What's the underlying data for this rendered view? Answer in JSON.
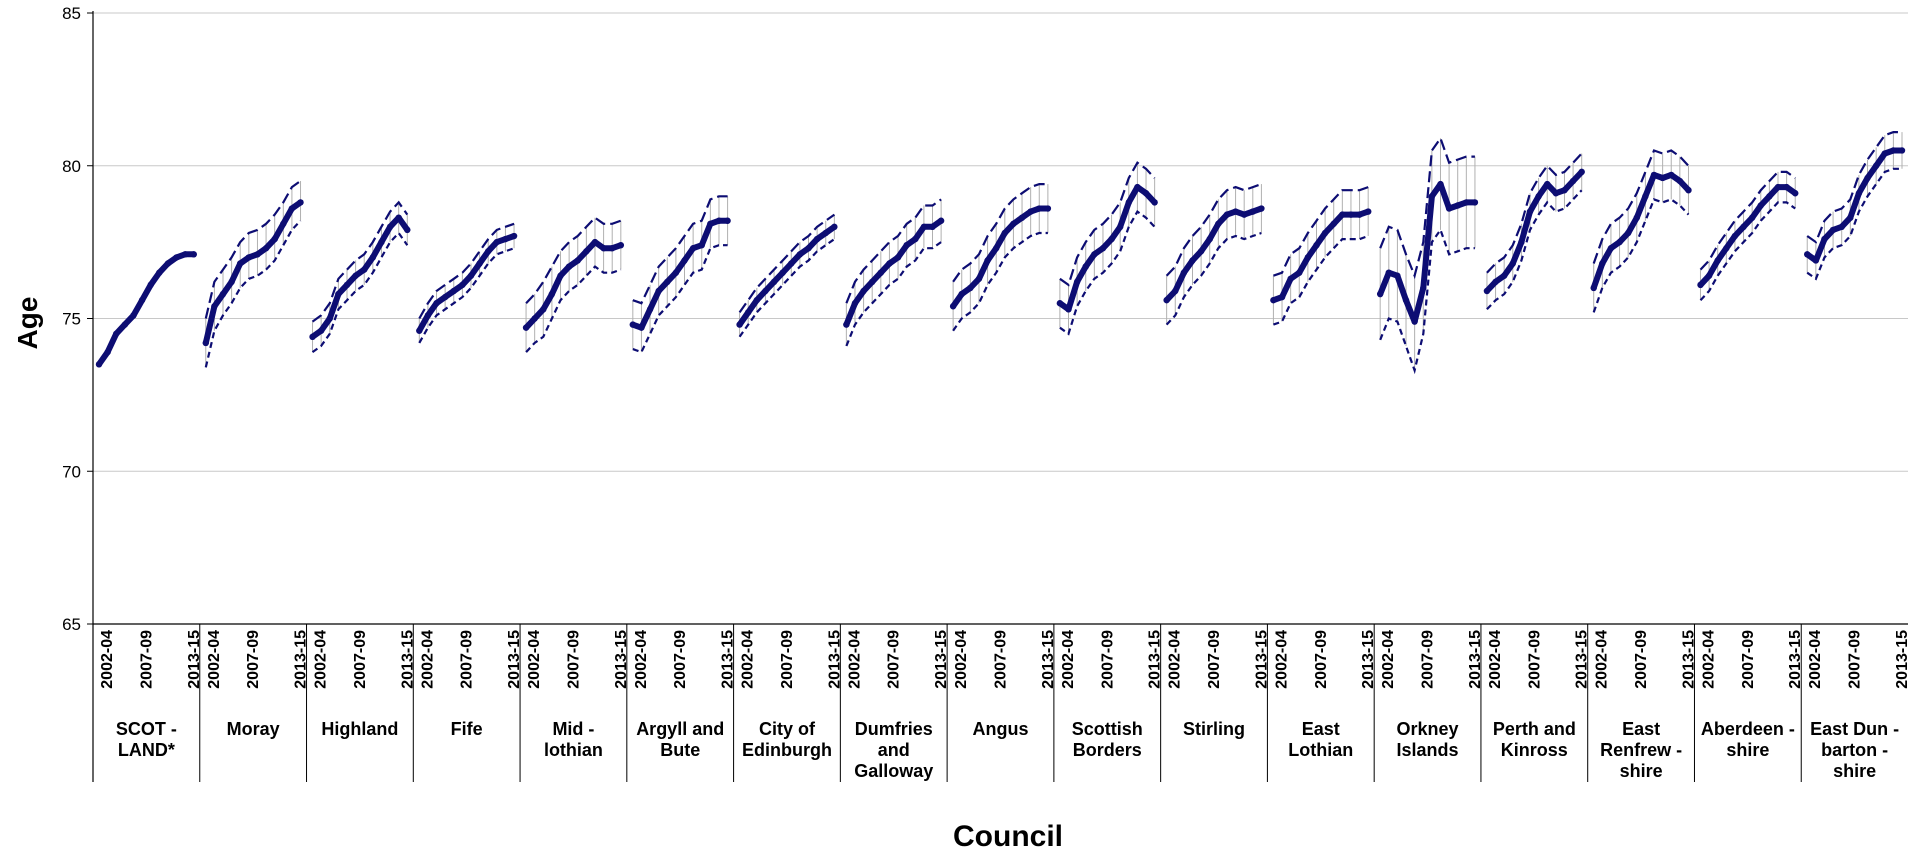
{
  "chart_data": {
    "type": "line",
    "ylabel": "Age",
    "xlabel": "Council",
    "ylim": [
      65,
      85
    ],
    "yticks": [
      65,
      70,
      75,
      80,
      85
    ],
    "grid": true,
    "period_ticks": [
      "2002-04",
      "2007-09",
      "2013-15"
    ],
    "periods": [
      "2002-04",
      "2003-05",
      "2004-06",
      "2005-07",
      "2006-08",
      "2007-09",
      "2008-10",
      "2009-11",
      "2010-12",
      "2011-13",
      "2012-14",
      "2013-15"
    ],
    "series_styles": {
      "estimate": "#0d0d73",
      "ci_bounds": "#0d0d73"
    },
    "groups": [
      {
        "council": [
          "SCOT -",
          "LAND*"
        ],
        "values": [
          73.5,
          73.9,
          74.5,
          74.8,
          75.1,
          75.6,
          76.1,
          76.5,
          76.8,
          77.0,
          77.1,
          77.1
        ],
        "lower": null,
        "upper": null
      },
      {
        "council": [
          "Moray"
        ],
        "values": [
          74.2,
          75.4,
          75.8,
          76.2,
          76.8,
          77.0,
          77.1,
          77.3,
          77.6,
          78.1,
          78.6,
          78.8
        ],
        "lower": [
          73.4,
          74.6,
          75.1,
          75.5,
          76.0,
          76.3,
          76.4,
          76.6,
          76.9,
          77.4,
          77.9,
          78.2
        ],
        "upper": [
          75.0,
          76.2,
          76.6,
          77.0,
          77.5,
          77.8,
          77.9,
          78.1,
          78.4,
          78.8,
          79.3,
          79.5
        ]
      },
      {
        "council": [
          "Highland"
        ],
        "values": [
          74.4,
          74.6,
          75.0,
          75.8,
          76.1,
          76.4,
          76.6,
          77.0,
          77.5,
          78.0,
          78.3,
          77.9
        ],
        "lower": [
          73.9,
          74.1,
          74.5,
          75.3,
          75.6,
          75.9,
          76.1,
          76.5,
          77.0,
          77.5,
          77.8,
          77.4
        ],
        "upper": [
          74.9,
          75.1,
          75.5,
          76.3,
          76.6,
          76.9,
          77.1,
          77.5,
          78.0,
          78.5,
          78.8,
          78.4
        ]
      },
      {
        "council": [
          "Fife"
        ],
        "values": [
          74.6,
          75.1,
          75.5,
          75.7,
          75.9,
          76.1,
          76.4,
          76.8,
          77.2,
          77.5,
          77.6,
          77.7
        ],
        "lower": [
          74.2,
          74.7,
          75.1,
          75.3,
          75.5,
          75.7,
          76.0,
          76.4,
          76.8,
          77.1,
          77.2,
          77.3
        ],
        "upper": [
          75.0,
          75.5,
          75.9,
          76.1,
          76.3,
          76.5,
          76.8,
          77.2,
          77.6,
          77.9,
          78.0,
          78.1
        ]
      },
      {
        "council": [
          "Mid -",
          "lothian"
        ],
        "values": [
          74.7,
          75.0,
          75.3,
          75.8,
          76.4,
          76.7,
          76.9,
          77.2,
          77.5,
          77.3,
          77.3,
          77.4
        ],
        "lower": [
          73.9,
          74.2,
          74.4,
          75.0,
          75.6,
          75.9,
          76.1,
          76.4,
          76.7,
          76.5,
          76.5,
          76.6
        ],
        "upper": [
          75.5,
          75.8,
          76.2,
          76.7,
          77.2,
          77.5,
          77.7,
          78.0,
          78.3,
          78.1,
          78.1,
          78.2
        ]
      },
      {
        "council": [
          "Argyll and",
          "Bute"
        ],
        "values": [
          74.8,
          74.7,
          75.3,
          75.9,
          76.2,
          76.5,
          76.9,
          77.3,
          77.4,
          78.1,
          78.2,
          78.2
        ],
        "lower": [
          74.0,
          73.9,
          74.5,
          75.1,
          75.4,
          75.7,
          76.1,
          76.5,
          76.6,
          77.3,
          77.4,
          77.4
        ],
        "upper": [
          75.6,
          75.5,
          76.1,
          76.7,
          77.0,
          77.3,
          77.7,
          78.1,
          78.2,
          78.9,
          79.0,
          79.0
        ]
      },
      {
        "council": [
          "City of",
          "Edinburgh"
        ],
        "values": [
          74.8,
          75.2,
          75.6,
          75.9,
          76.2,
          76.5,
          76.8,
          77.1,
          77.3,
          77.6,
          77.8,
          78.0
        ],
        "lower": [
          74.4,
          74.8,
          75.2,
          75.5,
          75.8,
          76.1,
          76.4,
          76.7,
          76.9,
          77.2,
          77.4,
          77.6
        ],
        "upper": [
          75.2,
          75.6,
          76.0,
          76.3,
          76.6,
          76.9,
          77.2,
          77.5,
          77.7,
          78.0,
          78.2,
          78.4
        ]
      },
      {
        "council": [
          "Dumfries",
          "and",
          "Galloway"
        ],
        "values": [
          74.8,
          75.5,
          75.9,
          76.2,
          76.5,
          76.8,
          77.0,
          77.4,
          77.6,
          78.0,
          78.0,
          78.2
        ],
        "lower": [
          74.1,
          74.8,
          75.2,
          75.5,
          75.8,
          76.1,
          76.3,
          76.7,
          76.9,
          77.3,
          77.3,
          77.5
        ],
        "upper": [
          75.5,
          76.2,
          76.6,
          76.9,
          77.2,
          77.5,
          77.7,
          78.1,
          78.3,
          78.7,
          78.7,
          78.9
        ]
      },
      {
        "council": [
          "Angus"
        ],
        "values": [
          75.4,
          75.8,
          76.0,
          76.3,
          76.9,
          77.3,
          77.8,
          78.1,
          78.3,
          78.5,
          78.6,
          78.6
        ],
        "lower": [
          74.6,
          75.0,
          75.2,
          75.5,
          76.1,
          76.5,
          77.0,
          77.3,
          77.5,
          77.7,
          77.8,
          77.8
        ],
        "upper": [
          76.2,
          76.6,
          76.8,
          77.1,
          77.7,
          78.1,
          78.6,
          78.9,
          79.1,
          79.3,
          79.4,
          79.4
        ]
      },
      {
        "council": [
          "Scottish",
          "Borders"
        ],
        "values": [
          75.5,
          75.3,
          76.2,
          76.7,
          77.1,
          77.3,
          77.6,
          78.0,
          78.8,
          79.3,
          79.1,
          78.8
        ],
        "lower": [
          74.7,
          74.5,
          75.4,
          75.9,
          76.3,
          76.5,
          76.8,
          77.2,
          78.0,
          78.5,
          78.3,
          78.0
        ],
        "upper": [
          76.3,
          76.1,
          77.0,
          77.5,
          77.9,
          78.1,
          78.4,
          78.8,
          79.6,
          80.1,
          79.9,
          79.6
        ]
      },
      {
        "council": [
          "Stirling"
        ],
        "values": [
          75.6,
          75.9,
          76.5,
          76.9,
          77.2,
          77.6,
          78.1,
          78.4,
          78.5,
          78.4,
          78.5,
          78.6
        ],
        "lower": [
          74.8,
          75.1,
          75.7,
          76.1,
          76.4,
          76.8,
          77.3,
          77.6,
          77.7,
          77.6,
          77.7,
          77.8
        ],
        "upper": [
          76.4,
          76.7,
          77.3,
          77.7,
          78.0,
          78.4,
          78.9,
          79.2,
          79.3,
          79.2,
          79.3,
          79.4
        ]
      },
      {
        "council": [
          "East",
          "Lothian"
        ],
        "values": [
          75.6,
          75.7,
          76.3,
          76.5,
          77.0,
          77.4,
          77.8,
          78.1,
          78.4,
          78.4,
          78.4,
          78.5
        ],
        "lower": [
          74.8,
          74.9,
          75.5,
          75.7,
          76.2,
          76.6,
          77.0,
          77.3,
          77.6,
          77.6,
          77.6,
          77.7
        ],
        "upper": [
          76.4,
          76.5,
          77.1,
          77.3,
          77.8,
          78.2,
          78.6,
          78.9,
          79.2,
          79.2,
          79.2,
          79.3
        ]
      },
      {
        "council": [
          "Orkney",
          "Islands"
        ],
        "values": [
          75.8,
          76.5,
          76.4,
          75.6,
          74.9,
          76.0,
          79.0,
          79.4,
          78.6,
          78.7,
          78.8,
          78.8
        ],
        "lower": [
          74.3,
          75.0,
          74.9,
          74.1,
          73.3,
          74.5,
          77.5,
          77.9,
          77.1,
          77.2,
          77.3,
          77.3
        ],
        "upper": [
          77.3,
          78.0,
          77.9,
          77.1,
          76.4,
          77.5,
          80.5,
          80.9,
          80.1,
          80.2,
          80.3,
          80.3
        ]
      },
      {
        "council": [
          "Perth and",
          "Kinross"
        ],
        "values": [
          75.9,
          76.2,
          76.4,
          76.8,
          77.5,
          78.5,
          79.0,
          79.4,
          79.1,
          79.2,
          79.5,
          79.8
        ],
        "lower": [
          75.3,
          75.6,
          75.8,
          76.2,
          76.9,
          77.9,
          78.4,
          78.8,
          78.5,
          78.6,
          78.9,
          79.2
        ],
        "upper": [
          76.5,
          76.8,
          77.0,
          77.4,
          78.1,
          79.1,
          79.6,
          80.0,
          79.7,
          79.8,
          80.1,
          80.4
        ]
      },
      {
        "council": [
          "East",
          "Renfrew -",
          "shire"
        ],
        "values": [
          76.0,
          76.8,
          77.3,
          77.5,
          77.8,
          78.3,
          79.0,
          79.7,
          79.6,
          79.7,
          79.5,
          79.2
        ],
        "lower": [
          75.2,
          76.0,
          76.5,
          76.7,
          77.0,
          77.5,
          78.2,
          78.9,
          78.8,
          78.9,
          78.7,
          78.4
        ],
        "upper": [
          76.8,
          77.6,
          78.1,
          78.3,
          78.6,
          79.1,
          79.8,
          80.5,
          80.4,
          80.5,
          80.3,
          80.0
        ]
      },
      {
        "council": [
          "Aberdeen -",
          "shire"
        ],
        "values": [
          76.1,
          76.4,
          76.9,
          77.3,
          77.7,
          78.0,
          78.3,
          78.7,
          79.0,
          79.3,
          79.3,
          79.1
        ],
        "lower": [
          75.6,
          75.9,
          76.4,
          76.8,
          77.2,
          77.5,
          77.8,
          78.2,
          78.5,
          78.8,
          78.8,
          78.6
        ],
        "upper": [
          76.6,
          76.9,
          77.4,
          77.8,
          78.2,
          78.5,
          78.8,
          79.2,
          79.5,
          79.8,
          79.8,
          79.6
        ]
      },
      {
        "council": [
          "East Dun -",
          "barton -",
          "shire"
        ],
        "values": [
          77.1,
          76.9,
          77.6,
          77.9,
          78.0,
          78.3,
          79.1,
          79.6,
          80.0,
          80.4,
          80.5,
          80.5
        ],
        "lower": [
          76.5,
          76.3,
          77.0,
          77.3,
          77.4,
          77.7,
          78.5,
          79.0,
          79.4,
          79.8,
          79.9,
          79.9
        ],
        "upper": [
          77.7,
          77.5,
          78.2,
          78.5,
          78.6,
          78.9,
          79.7,
          80.2,
          80.6,
          81.0,
          81.1,
          81.1
        ]
      }
    ]
  }
}
